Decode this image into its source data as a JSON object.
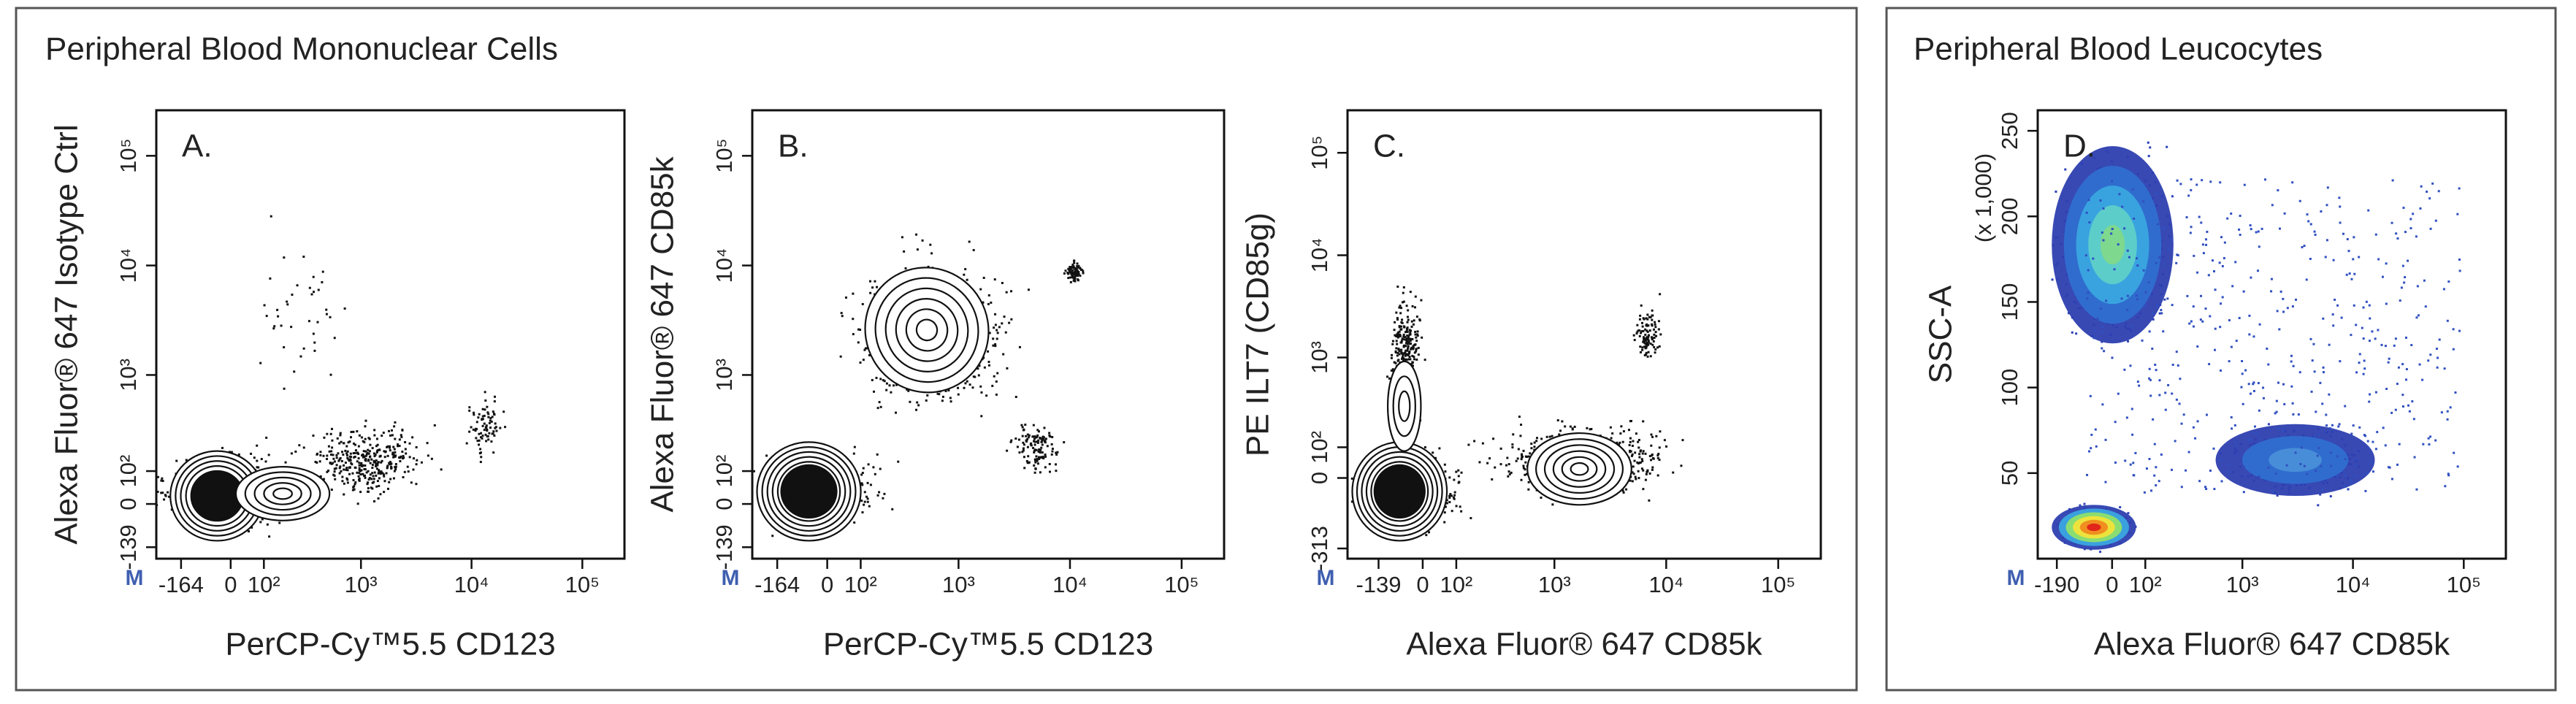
{
  "groups": [
    {
      "title": "Peripheral Blood Mononuclear Cells"
    },
    {
      "title": "Peripheral Blood Leucocytes"
    }
  ],
  "chart_data": [
    {
      "type": "contour",
      "label": "A.",
      "marker": "M",
      "x_label": "PerCP-Cy™5.5  CD123",
      "y_label": "Alexa Fluor® 647 Isotype Ctrl",
      "xscale": "logicle",
      "yscale": "logicle",
      "xlim": [
        -300,
        240000
      ],
      "ylim": [
        -190,
        260000
      ],
      "xticks": [
        -164,
        0,
        {
          "value": 100,
          "label": "10²"
        },
        {
          "value": 1000,
          "label": "10³"
        },
        {
          "value": 10000,
          "label": "10⁴"
        },
        {
          "value": 100000,
          "label": "10⁵"
        }
      ],
      "yticks": [
        -139,
        0,
        {
          "value": 100,
          "label": "10²"
        },
        {
          "value": 1000,
          "label": "10³"
        },
        {
          "value": 10000,
          "label": "10⁴"
        },
        {
          "value": 100000,
          "label": "10⁵"
        }
      ]
    },
    {
      "type": "contour",
      "label": "B.",
      "marker": "M",
      "x_label": "PerCP-Cy™5.5  CD123",
      "y_label": "Alexa Fluor® 647  CD85k",
      "xscale": "logicle",
      "yscale": "logicle",
      "xlim": [
        -300,
        240000
      ],
      "ylim": [
        -190,
        260000
      ],
      "xticks": [
        -164,
        0,
        {
          "value": 100,
          "label": "10²"
        },
        {
          "value": 1000,
          "label": "10³"
        },
        {
          "value": 10000,
          "label": "10⁴"
        },
        {
          "value": 100000,
          "label": "10⁵"
        }
      ],
      "yticks": [
        -139,
        0,
        {
          "value": 100,
          "label": "10²"
        },
        {
          "value": 1000,
          "label": "10³"
        },
        {
          "value": 10000,
          "label": "10⁴"
        },
        {
          "value": 100000,
          "label": "10⁵"
        }
      ]
    },
    {
      "type": "contour",
      "label": "C.",
      "marker": "M",
      "x_label": "Alexa Fluor® 647  CD85k",
      "y_label": "PE  ILT7 (CD85g)",
      "xscale": "logicle",
      "yscale": "logicle",
      "xlim": [
        -300,
        240000
      ],
      "ylim": [
        -400,
        260000
      ],
      "xticks": [
        -139,
        0,
        {
          "value": 100,
          "label": "10²"
        },
        {
          "value": 1000,
          "label": "10³"
        },
        {
          "value": 10000,
          "label": "10⁴"
        },
        {
          "value": 100000,
          "label": "10⁵"
        }
      ],
      "yticks": [
        -313,
        0,
        {
          "value": 100,
          "label": "10²"
        },
        {
          "value": 1000,
          "label": "10³"
        },
        {
          "value": 10000,
          "label": "10⁴"
        },
        {
          "value": 100000,
          "label": "10⁵"
        }
      ]
    },
    {
      "type": "density",
      "label": "D.",
      "marker": "M",
      "x_label": "Alexa Fluor® 647  CD85k",
      "y_label": "SSC-A",
      "y_note": "(x 1,000)",
      "xscale": "logicle",
      "yscale": "linear",
      "xlim": [
        -300,
        240000
      ],
      "ylim": [
        0,
        262
      ],
      "xticks": [
        -190,
        0,
        {
          "value": 100,
          "label": "10²"
        },
        {
          "value": 1000,
          "label": "10³"
        },
        {
          "value": 10000,
          "label": "10⁴"
        },
        {
          "value": 100000,
          "label": "10⁵"
        }
      ],
      "yticks": [
        50,
        100,
        150,
        200,
        250
      ]
    }
  ]
}
